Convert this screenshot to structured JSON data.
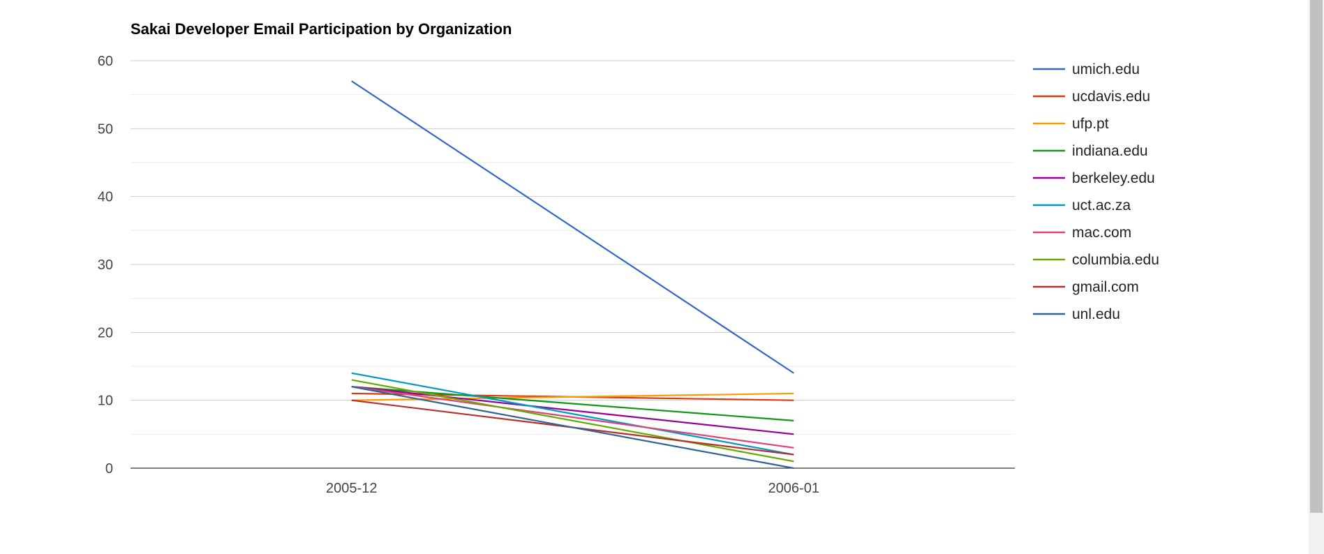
{
  "chart_data": {
    "type": "line",
    "title": "Sakai Developer Email Participation by Organization",
    "xlabel": "",
    "ylabel": "",
    "categories": [
      "2005-12",
      "2006-01"
    ],
    "ylim": [
      0,
      60
    ],
    "yticks": [
      0,
      10,
      20,
      30,
      40,
      50,
      60
    ],
    "grid": true,
    "legend_position": "right",
    "series": [
      {
        "name": "umich.edu",
        "color": "#3366cc",
        "values": [
          57,
          14
        ]
      },
      {
        "name": "ucdavis.edu",
        "color": "#dc3912",
        "values": [
          11,
          10
        ]
      },
      {
        "name": "ufp.pt",
        "color": "#ff9900",
        "values": [
          10,
          11
        ]
      },
      {
        "name": "indiana.edu",
        "color": "#109618",
        "values": [
          12,
          7
        ]
      },
      {
        "name": "berkeley.edu",
        "color": "#990099",
        "values": [
          12,
          5
        ]
      },
      {
        "name": "uct.ac.za",
        "color": "#0099c6",
        "values": [
          14,
          2
        ]
      },
      {
        "name": "mac.com",
        "color": "#dd4477",
        "values": [
          12,
          3
        ]
      },
      {
        "name": "columbia.edu",
        "color": "#66aa00",
        "values": [
          13,
          1
        ]
      },
      {
        "name": "gmail.com",
        "color": "#b82e2e",
        "values": [
          10,
          2
        ]
      },
      {
        "name": "unl.edu",
        "color": "#316395",
        "values": [
          12,
          0
        ]
      }
    ]
  },
  "colors": {
    "gridline": "#cccccc",
    "minor_gridline": "#ebebeb",
    "baseline": "#333333",
    "tick_text": "#444444",
    "title_text": "#000000",
    "legend_text": "#222222"
  }
}
